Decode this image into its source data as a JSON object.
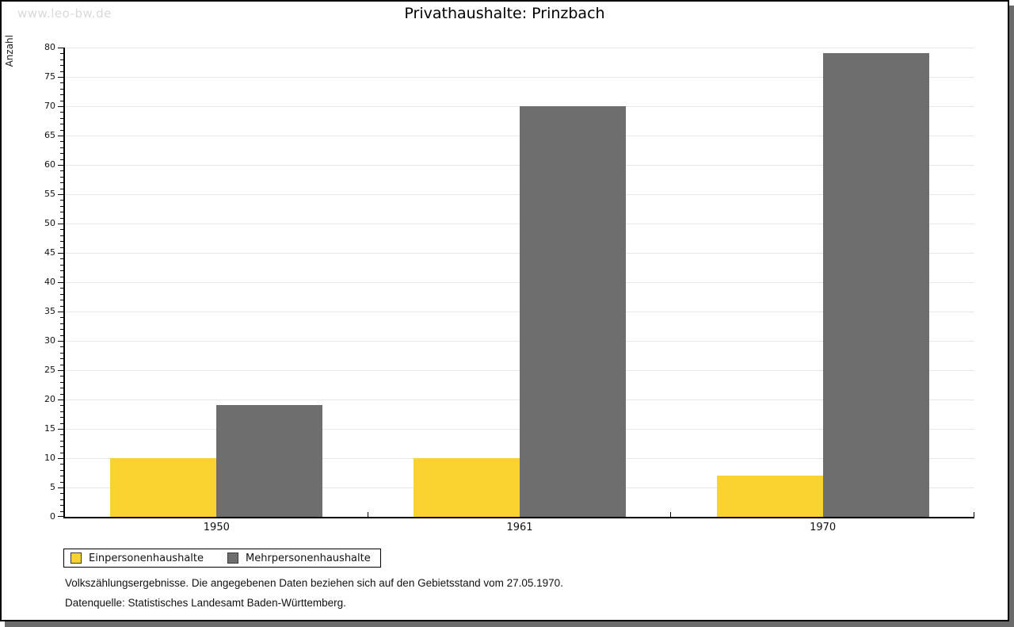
{
  "watermark": "www.leo-bw.de",
  "title": "Privathaushalte: Prinzbach",
  "chart_data": {
    "type": "bar",
    "title": "Privathaushalte: Prinzbach",
    "categories": [
      "1950",
      "1961",
      "1970"
    ],
    "series": [
      {
        "name": "Einpersonenhaushalte",
        "color": "#fbd330",
        "values": [
          10,
          10,
          7
        ]
      },
      {
        "name": "Mehrpersonenhaushalte",
        "color": "#6e6e6e",
        "values": [
          19,
          70,
          79
        ]
      }
    ],
    "xlabel": "",
    "ylabel": "Anzahl",
    "ylim": [
      0,
      80
    ],
    "ytick_step": 5,
    "minor_tick_step": 1,
    "grid": true,
    "legend_position": "bottom-left"
  },
  "footer": {
    "line1": "Volkszählungsergebnisse. Die angegebenen Daten beziehen sich auf den Gebietsstand vom 27.05.1970.",
    "line2": "Datenquelle: Statistisches Landesamt Baden-Württemberg."
  },
  "colors": {
    "bar_yellow": "#fbd330",
    "bar_gray": "#6e6e6e",
    "gridline": "#e6e6e6",
    "axis": "#000000",
    "watermark": "#d9d9d9",
    "frame_shadow": "#6b6b6b"
  }
}
